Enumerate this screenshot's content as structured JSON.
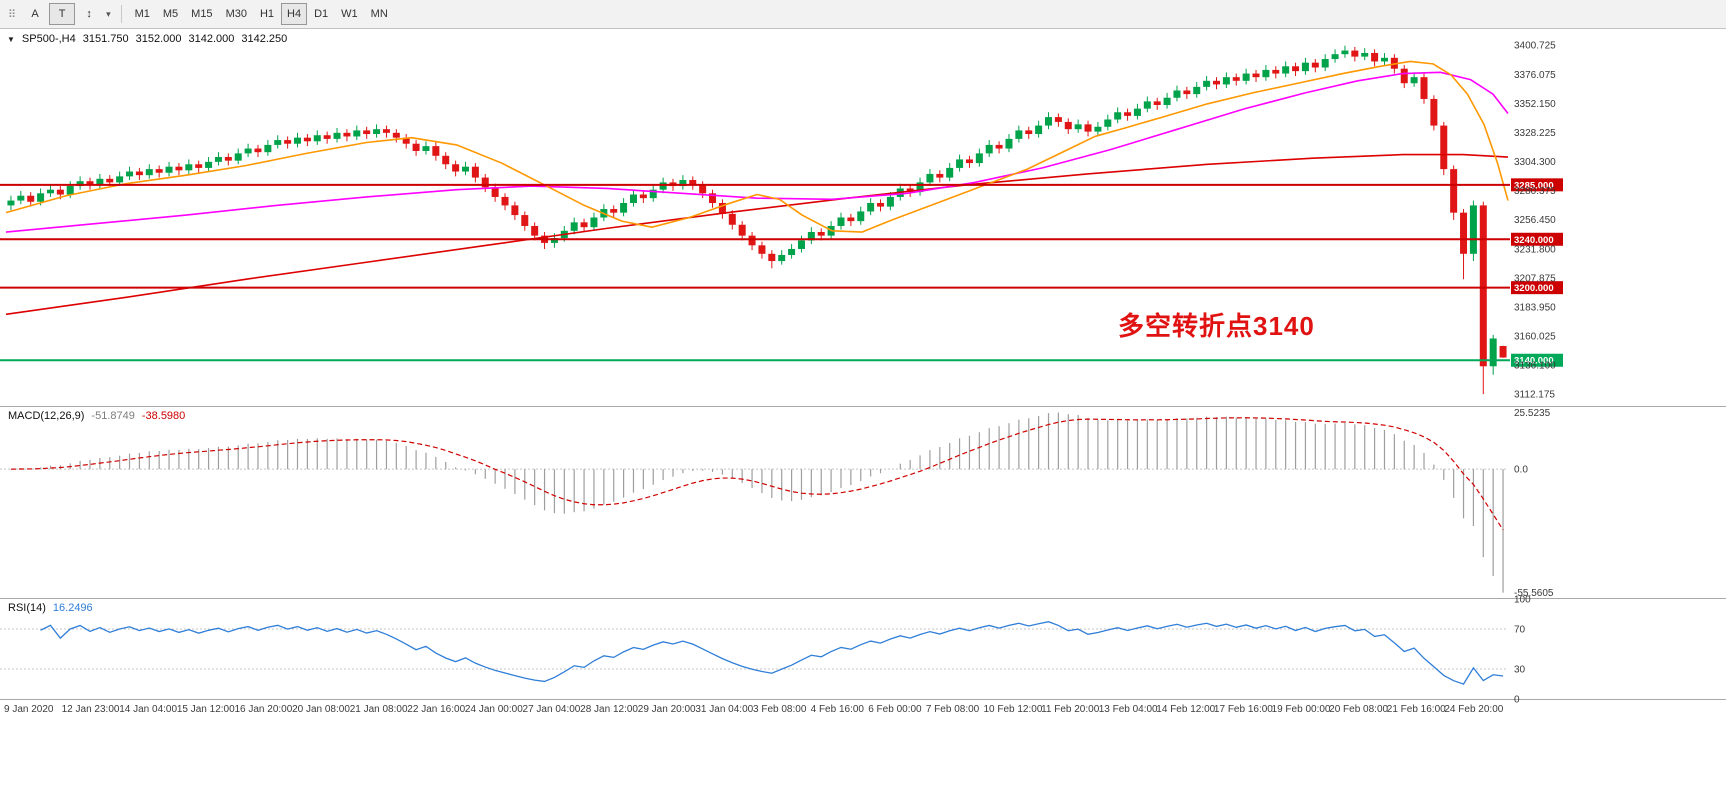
{
  "toolbar": {
    "grip": "⠿",
    "left_buttons": [
      {
        "id": "arrow-tool",
        "label": "A",
        "pressed": false
      },
      {
        "id": "text-tool",
        "label": "T",
        "pressed": true
      },
      {
        "id": "scale-tool",
        "label": "↕",
        "pressed": false
      },
      {
        "id": "more-caret",
        "label": "▾",
        "pressed": false,
        "caret": true
      }
    ],
    "timeframes": [
      "M1",
      "M5",
      "M15",
      "M30",
      "H1",
      "H4",
      "D1",
      "W1",
      "MN"
    ],
    "active_timeframe": "H4"
  },
  "header": {
    "dropdown_glyph": "▼",
    "symbol": "SP500-,H4",
    "open": "3151.750",
    "high": "3152.000",
    "low": "3142.000",
    "close": "3142.250"
  },
  "annotation": {
    "text": "多空转折点3140",
    "color": "#e01212"
  },
  "macd_panel": {
    "name": "MACD(12,26,9)",
    "value_main": "-51.8749",
    "value_signal": "-38.5980",
    "axis": [
      {
        "text": "25.5235",
        "value": 25.5235
      },
      {
        "text": "0.0",
        "value": 0
      },
      {
        "text": "-55.5605",
        "value": -55.5605
      }
    ]
  },
  "rsi_panel": {
    "name": "RSI(14)",
    "value": "16.2496",
    "axis": [
      {
        "text": "100",
        "value": 100
      },
      {
        "text": "70",
        "value": 70
      },
      {
        "text": "30",
        "value": 30
      },
      {
        "text": "0",
        "value": 0
      }
    ],
    "levels": [
      70,
      30
    ]
  },
  "price_axis": [
    "3400.725",
    "3376.075",
    "3352.150",
    "3328.225",
    "3304.300",
    "3280.375",
    "3256.450",
    "3231.800",
    "3207.875",
    "3183.950",
    "3160.025",
    "3136.100",
    "3112.175"
  ],
  "levels": [
    {
      "label": "3285.000",
      "value": 3285,
      "color": "#cc0000"
    },
    {
      "label": "3240.000",
      "value": 3240,
      "color": "#cc0000"
    },
    {
      "label": "3200.000",
      "value": 3200,
      "color": "#cc0000"
    },
    {
      "label": "3140.000",
      "value": 3140,
      "color": "#00a859"
    }
  ],
  "time_axis": [
    "9 Jan 2020",
    "12 Jan 23:00",
    "14 Jan 04:00",
    "15 Jan 12:00",
    "16 Jan 20:00",
    "20 Jan 08:00",
    "21 Jan 08:00",
    "22 Jan 16:00",
    "24 Jan 00:00",
    "27 Jan 04:00",
    "28 Jan 12:00",
    "29 Jan 20:00",
    "31 Jan 04:00",
    "3 Feb 08:00",
    "4 Feb 16:00",
    "6 Feb 00:00",
    "7 Feb 08:00",
    "10 Feb 12:00",
    "11 Feb 20:00",
    "13 Feb 04:00",
    "14 Feb 12:00",
    "17 Feb 16:00",
    "19 Feb 00:00",
    "20 Feb 08:00",
    "21 Feb 16:00",
    "24 Feb 20:00"
  ],
  "chart_data": {
    "type": "candlestick",
    "symbol": "SP500-",
    "timeframe": "H4",
    "price_range": [
      3103,
      3413
    ],
    "indicators": [
      "MA fast (orange)",
      "MA mid (magenta)",
      "MA slow (red)",
      "MACD(12,26,9)",
      "RSI(14)"
    ],
    "colors": {
      "up": "#00a24a",
      "down": "#e01515",
      "ma_fast": "#ff9800",
      "ma_mid": "#ff00ff",
      "ma_slow": "#dd0000",
      "macd_hist": "#9e9e9e",
      "macd_signal": "#d00000",
      "rsi": "#2f7ed8"
    },
    "candles": [
      [
        3268,
        3276,
        3264,
        3272
      ],
      [
        3272,
        3280,
        3269,
        3276
      ],
      [
        3276,
        3279,
        3267,
        3271
      ],
      [
        3271,
        3282,
        3268,
        3278
      ],
      [
        3278,
        3285,
        3275,
        3281
      ],
      [
        3281,
        3284,
        3273,
        3277
      ],
      [
        3277,
        3288,
        3274,
        3284
      ],
      [
        3284,
        3292,
        3281,
        3288
      ],
      [
        3288,
        3291,
        3281,
        3285
      ],
      [
        3285,
        3294,
        3282,
        3290
      ],
      [
        3290,
        3293,
        3284,
        3287
      ],
      [
        3287,
        3296,
        3284,
        3292
      ],
      [
        3292,
        3300,
        3289,
        3296
      ],
      [
        3296,
        3299,
        3289,
        3293
      ],
      [
        3293,
        3302,
        3290,
        3298
      ],
      [
        3298,
        3301,
        3291,
        3295
      ],
      [
        3295,
        3304,
        3292,
        3300
      ],
      [
        3300,
        3303,
        3293,
        3297
      ],
      [
        3297,
        3306,
        3294,
        3302
      ],
      [
        3302,
        3305,
        3295,
        3299
      ],
      [
        3299,
        3308,
        3296,
        3304
      ],
      [
        3304,
        3312,
        3301,
        3308
      ],
      [
        3308,
        3311,
        3301,
        3305
      ],
      [
        3305,
        3315,
        3302,
        3311
      ],
      [
        3311,
        3319,
        3308,
        3315
      ],
      [
        3315,
        3318,
        3308,
        3312
      ],
      [
        3312,
        3322,
        3309,
        3318
      ],
      [
        3318,
        3326,
        3315,
        3322
      ],
      [
        3322,
        3325,
        3315,
        3319
      ],
      [
        3319,
        3328,
        3316,
        3324
      ],
      [
        3324,
        3327,
        3317,
        3321
      ],
      [
        3321,
        3330,
        3318,
        3326
      ],
      [
        3326,
        3329,
        3319,
        3323
      ],
      [
        3323,
        3332,
        3320,
        3328
      ],
      [
        3328,
        3331,
        3321,
        3325
      ],
      [
        3325,
        3334,
        3322,
        3330
      ],
      [
        3330,
        3333,
        3323,
        3327
      ],
      [
        3327,
        3335,
        3324,
        3331
      ],
      [
        3331,
        3334,
        3324,
        3328
      ],
      [
        3328,
        3331,
        3320,
        3324
      ],
      [
        3324,
        3327,
        3315,
        3319
      ],
      [
        3319,
        3322,
        3309,
        3313
      ],
      [
        3313,
        3321,
        3310,
        3317
      ],
      [
        3317,
        3320,
        3305,
        3309
      ],
      [
        3309,
        3312,
        3298,
        3302
      ],
      [
        3302,
        3305,
        3292,
        3296
      ],
      [
        3296,
        3304,
        3293,
        3300
      ],
      [
        3300,
        3303,
        3287,
        3291
      ],
      [
        3291,
        3294,
        3279,
        3283
      ],
      [
        3283,
        3286,
        3271,
        3275
      ],
      [
        3275,
        3278,
        3264,
        3268
      ],
      [
        3268,
        3271,
        3256,
        3260
      ],
      [
        3260,
        3263,
        3247,
        3251
      ],
      [
        3251,
        3254,
        3239,
        3243
      ],
      [
        3243,
        3246,
        3232,
        3237
      ],
      [
        3237,
        3245,
        3233,
        3241
      ],
      [
        3241,
        3251,
        3238,
        3247
      ],
      [
        3247,
        3258,
        3244,
        3254
      ],
      [
        3254,
        3257,
        3246,
        3250
      ],
      [
        3250,
        3262,
        3247,
        3258
      ],
      [
        3258,
        3269,
        3255,
        3265
      ],
      [
        3265,
        3268,
        3258,
        3262
      ],
      [
        3262,
        3274,
        3259,
        3270
      ],
      [
        3270,
        3281,
        3267,
        3277
      ],
      [
        3277,
        3280,
        3270,
        3274
      ],
      [
        3274,
        3285,
        3271,
        3281
      ],
      [
        3281,
        3291,
        3278,
        3287
      ],
      [
        3287,
        3290,
        3280,
        3284
      ],
      [
        3284,
        3293,
        3281,
        3289
      ],
      [
        3289,
        3292,
        3281,
        3285
      ],
      [
        3285,
        3288,
        3274,
        3278
      ],
      [
        3278,
        3281,
        3266,
        3270
      ],
      [
        3270,
        3273,
        3257,
        3261
      ],
      [
        3261,
        3264,
        3248,
        3252
      ],
      [
        3252,
        3255,
        3239,
        3243
      ],
      [
        3243,
        3246,
        3231,
        3235
      ],
      [
        3235,
        3238,
        3224,
        3228
      ],
      [
        3228,
        3231,
        3216,
        3222
      ],
      [
        3222,
        3231,
        3219,
        3227
      ],
      [
        3227,
        3236,
        3224,
        3232
      ],
      [
        3232,
        3243,
        3229,
        3239
      ],
      [
        3239,
        3250,
        3236,
        3246
      ],
      [
        3246,
        3249,
        3239,
        3243
      ],
      [
        3243,
        3255,
        3240,
        3251
      ],
      [
        3251,
        3262,
        3248,
        3258
      ],
      [
        3258,
        3261,
        3251,
        3255
      ],
      [
        3255,
        3267,
        3252,
        3263
      ],
      [
        3263,
        3274,
        3260,
        3270
      ],
      [
        3270,
        3273,
        3263,
        3267
      ],
      [
        3267,
        3279,
        3264,
        3275
      ],
      [
        3275,
        3286,
        3272,
        3282
      ],
      [
        3282,
        3285,
        3275,
        3279
      ],
      [
        3279,
        3291,
        3276,
        3287
      ],
      [
        3287,
        3298,
        3284,
        3294
      ],
      [
        3294,
        3297,
        3287,
        3291
      ],
      [
        3291,
        3303,
        3288,
        3299
      ],
      [
        3299,
        3310,
        3296,
        3306
      ],
      [
        3306,
        3309,
        3299,
        3303
      ],
      [
        3303,
        3315,
        3300,
        3311
      ],
      [
        3311,
        3322,
        3308,
        3318
      ],
      [
        3318,
        3321,
        3311,
        3315
      ],
      [
        3315,
        3327,
        3312,
        3323
      ],
      [
        3323,
        3334,
        3320,
        3330
      ],
      [
        3330,
        3333,
        3323,
        3327
      ],
      [
        3327,
        3338,
        3324,
        3334
      ],
      [
        3334,
        3345,
        3331,
        3341
      ],
      [
        3341,
        3344,
        3333,
        3337
      ],
      [
        3337,
        3340,
        3327,
        3331
      ],
      [
        3331,
        3339,
        3328,
        3335
      ],
      [
        3335,
        3338,
        3325,
        3329
      ],
      [
        3329,
        3337,
        3326,
        3333
      ],
      [
        3333,
        3343,
        3330,
        3339
      ],
      [
        3339,
        3349,
        3336,
        3345
      ],
      [
        3345,
        3348,
        3338,
        3342
      ],
      [
        3342,
        3352,
        3339,
        3348
      ],
      [
        3348,
        3358,
        3345,
        3354
      ],
      [
        3354,
        3357,
        3347,
        3351
      ],
      [
        3351,
        3361,
        3348,
        3357
      ],
      [
        3357,
        3367,
        3354,
        3363
      ],
      [
        3363,
        3366,
        3356,
        3360
      ],
      [
        3360,
        3370,
        3357,
        3366
      ],
      [
        3366,
        3375,
        3363,
        3371
      ],
      [
        3371,
        3374,
        3364,
        3368
      ],
      [
        3368,
        3378,
        3365,
        3374
      ],
      [
        3374,
        3377,
        3367,
        3371
      ],
      [
        3371,
        3381,
        3368,
        3377
      ],
      [
        3377,
        3380,
        3370,
        3374
      ],
      [
        3374,
        3384,
        3371,
        3380
      ],
      [
        3380,
        3383,
        3373,
        3377
      ],
      [
        3377,
        3387,
        3374,
        3383
      ],
      [
        3383,
        3386,
        3375,
        3379
      ],
      [
        3379,
        3390,
        3376,
        3386
      ],
      [
        3386,
        3389,
        3378,
        3382
      ],
      [
        3382,
        3393,
        3379,
        3389
      ],
      [
        3389,
        3397,
        3386,
        3393
      ],
      [
        3393,
        3400,
        3390,
        3396
      ],
      [
        3396,
        3399,
        3387,
        3391
      ],
      [
        3391,
        3398,
        3388,
        3394
      ],
      [
        3394,
        3397,
        3383,
        3387
      ],
      [
        3387,
        3394,
        3384,
        3390
      ],
      [
        3390,
        3393,
        3377,
        3381
      ],
      [
        3381,
        3384,
        3365,
        3369
      ],
      [
        3369,
        3378,
        3366,
        3374
      ],
      [
        3374,
        3377,
        3352,
        3356
      ],
      [
        3356,
        3359,
        3330,
        3334
      ],
      [
        3334,
        3337,
        3293,
        3298
      ],
      [
        3298,
        3301,
        3256,
        3262
      ],
      [
        3262,
        3265,
        3207,
        3228
      ],
      [
        3228,
        3272,
        3222,
        3268
      ],
      [
        3268,
        3271,
        3112,
        3135
      ],
      [
        3135,
        3161,
        3128,
        3158
      ],
      [
        3151.75,
        3152,
        3142,
        3142.25
      ]
    ],
    "ma_fast_orange": [
      [
        0,
        3262
      ],
      [
        0.04,
        3276
      ],
      [
        0.08,
        3286
      ],
      [
        0.12,
        3293
      ],
      [
        0.16,
        3301
      ],
      [
        0.2,
        3311
      ],
      [
        0.24,
        3320
      ],
      [
        0.27,
        3324
      ],
      [
        0.3,
        3318
      ],
      [
        0.33,
        3303
      ],
      [
        0.36,
        3284
      ],
      [
        0.385,
        3268
      ],
      [
        0.41,
        3255
      ],
      [
        0.43,
        3250
      ],
      [
        0.455,
        3258
      ],
      [
        0.48,
        3269
      ],
      [
        0.5,
        3277
      ],
      [
        0.515,
        3273
      ],
      [
        0.53,
        3260
      ],
      [
        0.55,
        3247
      ],
      [
        0.57,
        3246
      ],
      [
        0.59,
        3256
      ],
      [
        0.62,
        3270
      ],
      [
        0.65,
        3284
      ],
      [
        0.68,
        3298
      ],
      [
        0.705,
        3313
      ],
      [
        0.725,
        3325
      ],
      [
        0.745,
        3332
      ],
      [
        0.77,
        3341
      ],
      [
        0.8,
        3352
      ],
      [
        0.83,
        3361
      ],
      [
        0.86,
        3369
      ],
      [
        0.89,
        3377
      ],
      [
        0.915,
        3383
      ],
      [
        0.935,
        3387
      ],
      [
        0.95,
        3385
      ],
      [
        0.962,
        3376
      ],
      [
        0.973,
        3360
      ],
      [
        0.984,
        3335
      ],
      [
        0.993,
        3303
      ],
      [
        1,
        3272
      ]
    ],
    "ma_mid_magenta": [
      [
        0,
        3246
      ],
      [
        0.06,
        3253
      ],
      [
        0.12,
        3260
      ],
      [
        0.18,
        3268
      ],
      [
        0.24,
        3275
      ],
      [
        0.3,
        3281
      ],
      [
        0.35,
        3284
      ],
      [
        0.4,
        3282
      ],
      [
        0.45,
        3278
      ],
      [
        0.5,
        3274
      ],
      [
        0.55,
        3273
      ],
      [
        0.6,
        3278
      ],
      [
        0.645,
        3287
      ],
      [
        0.69,
        3299
      ],
      [
        0.735,
        3314
      ],
      [
        0.78,
        3331
      ],
      [
        0.825,
        3348
      ],
      [
        0.865,
        3361
      ],
      [
        0.9,
        3371
      ],
      [
        0.93,
        3377
      ],
      [
        0.955,
        3378
      ],
      [
        0.975,
        3372
      ],
      [
        0.99,
        3360
      ],
      [
        1,
        3344
      ]
    ],
    "ma_slow_red": [
      [
        0,
        3178
      ],
      [
        0.08,
        3192
      ],
      [
        0.16,
        3207
      ],
      [
        0.24,
        3221
      ],
      [
        0.32,
        3235
      ],
      [
        0.4,
        3249
      ],
      [
        0.48,
        3262
      ],
      [
        0.56,
        3274
      ],
      [
        0.64,
        3285
      ],
      [
        0.72,
        3294
      ],
      [
        0.8,
        3302
      ],
      [
        0.87,
        3307
      ],
      [
        0.93,
        3310
      ],
      [
        0.97,
        3310
      ],
      [
        1,
        3308
      ]
    ]
  }
}
